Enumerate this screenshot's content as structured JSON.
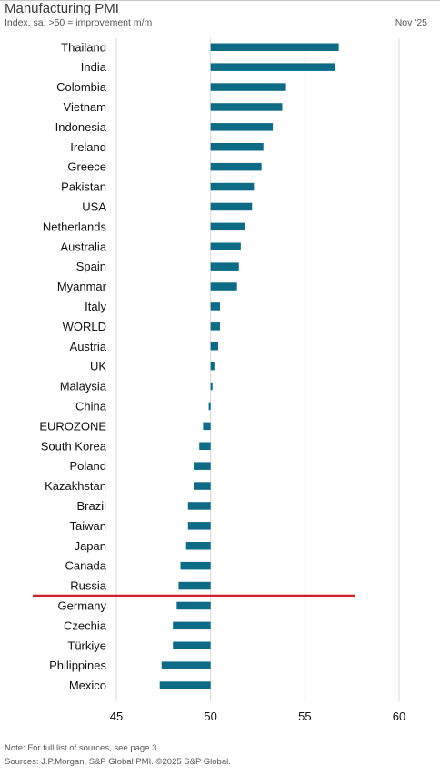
{
  "header": {
    "title": "Manufacturing PMI",
    "subtitle": "Index, sa, >50 = improvement m/m",
    "date": "Nov '25"
  },
  "footer": {
    "note": "Note: For full list of sources, see page 3.",
    "sources": "Sources: J.P.Morgan, S&P Global PMI. ©2025 S&P Global."
  },
  "chart_data": {
    "type": "bar",
    "orientation": "horizontal",
    "baseline": 50,
    "xlim": [
      45,
      60
    ],
    "xticks": [
      45,
      50,
      55,
      60
    ],
    "grid": true,
    "bar_color": "#0d6b85",
    "divider_color": "#c8202e",
    "divider_after_category": "Russia",
    "categories": [
      "Thailand",
      "India",
      "Colombia",
      "Vietnam",
      "Indonesia",
      "Ireland",
      "Greece",
      "Pakistan",
      "USA",
      "Netherlands",
      "Australia",
      "Spain",
      "Myanmar",
      "Italy",
      "WORLD",
      "Austria",
      "UK",
      "Malaysia",
      "China",
      "EUROZONE",
      "South Korea",
      "Poland",
      "Kazakhstan",
      "Brazil",
      "Taiwan",
      "Japan",
      "Canada",
      "Russia",
      "Germany",
      "Czechia",
      "Türkiye",
      "Philippines",
      "Mexico"
    ],
    "values": [
      56.8,
      56.6,
      54.0,
      53.8,
      53.3,
      52.8,
      52.7,
      52.3,
      52.2,
      51.8,
      51.6,
      51.5,
      51.4,
      50.5,
      50.5,
      50.4,
      50.2,
      50.1,
      49.9,
      49.6,
      49.4,
      49.1,
      49.1,
      48.8,
      48.8,
      48.7,
      48.4,
      48.3,
      48.2,
      48.0,
      48.0,
      47.4,
      47.3
    ]
  }
}
